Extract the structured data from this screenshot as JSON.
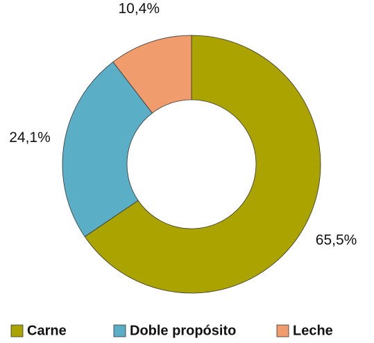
{
  "chart_data": {
    "type": "donut",
    "categories": [
      "Carne",
      "Doble propósito",
      "Leche"
    ],
    "values": [
      65.5,
      24.1,
      10.4
    ],
    "value_labels": [
      "65,5%",
      "24,1%",
      "10,4%"
    ],
    "colors": [
      "#aba300",
      "#5aaec6",
      "#f09c6c"
    ]
  }
}
